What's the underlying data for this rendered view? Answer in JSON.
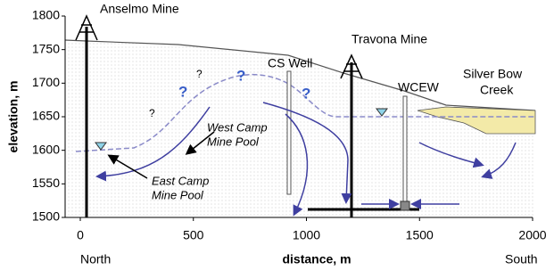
{
  "chart_data": {
    "type": "cross-section",
    "xlabel": "distance, m",
    "ylabel": "elevation, m",
    "xlim": [
      0,
      2000
    ],
    "ylim": [
      1500,
      1800
    ],
    "xticks": [
      0,
      500,
      1000,
      1500,
      2000
    ],
    "yticks": [
      1500,
      1550,
      1600,
      1650,
      1700,
      1750,
      1800
    ],
    "x_end_labels": [
      "North",
      "South"
    ],
    "annotations": [
      "Anselmo Mine",
      "CS Well",
      "Travona Mine",
      "WCEW",
      "Silver Bow",
      "Creek",
      "West Camp",
      "Mine Pool",
      "East Camp",
      "Mine Pool",
      "?",
      "?",
      "?",
      "?",
      "?"
    ]
  }
}
